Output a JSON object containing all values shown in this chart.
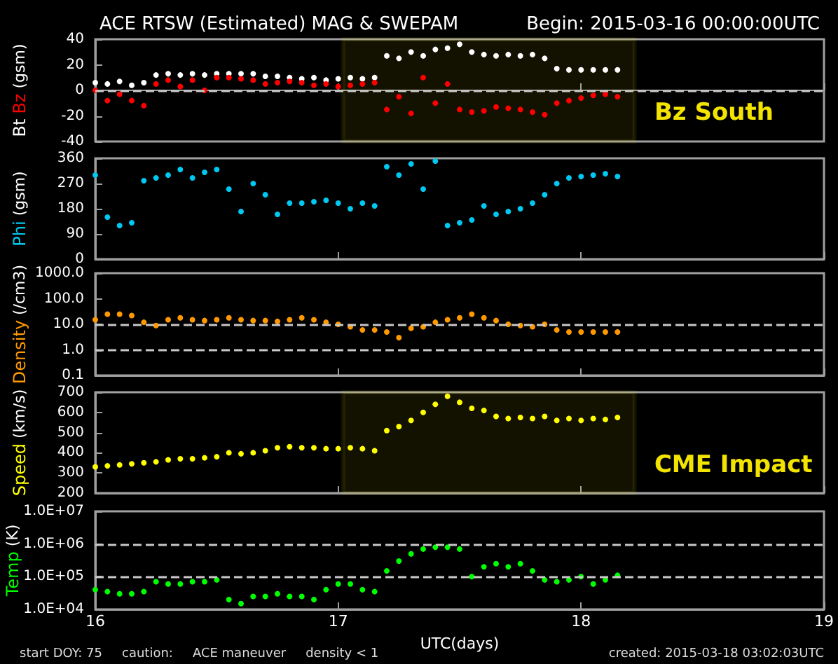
{
  "chart_data": [
    {
      "type": "scatter",
      "title": "ACE RTSW (Estimated) MAG & SWEPAM",
      "subtitle": "Begin: 2015-03-16 00:00:00UTC",
      "ylabel": "(gsm)",
      "marker": "circle",
      "tick_labels": "y",
      "x": [
        16.0,
        16.05,
        16.1,
        16.15,
        16.2,
        16.25,
        16.3,
        16.35,
        16.4,
        16.45,
        16.5,
        16.55,
        16.6,
        16.65,
        16.7,
        16.75,
        16.8,
        16.85,
        16.9,
        16.95,
        17.0,
        17.05,
        17.1,
        17.15,
        17.2,
        17.25,
        17.3,
        17.35,
        17.4,
        17.45,
        17.5,
        17.55,
        17.6,
        17.65,
        17.7,
        17.75,
        17.8,
        17.85,
        17.9,
        17.95,
        18.0,
        18.05,
        18.1,
        18.15
      ],
      "series": [
        {
          "name": "Bt",
          "color": "#ffffff",
          "values": [
            6,
            5,
            7,
            4,
            6,
            12,
            13,
            12,
            13,
            12,
            13,
            13,
            13,
            13,
            11,
            11,
            10,
            9,
            10,
            8,
            9,
            10,
            9,
            10,
            27,
            25,
            30,
            27,
            32,
            33,
            36,
            30,
            28,
            27,
            28,
            27,
            28,
            25,
            17,
            16,
            16,
            16,
            16,
            16
          ]
        },
        {
          "name": "Bz",
          "color": "#ff0000",
          "values": [
            0,
            -8,
            -3,
            -8,
            -12,
            5,
            8,
            3,
            8,
            0,
            10,
            10,
            9,
            8,
            5,
            6,
            7,
            6,
            4,
            5,
            3,
            4,
            5,
            6,
            -15,
            -5,
            -18,
            10,
            -10,
            5,
            -15,
            -17,
            -16,
            -13,
            -14,
            -15,
            -17,
            -19,
            -10,
            -8,
            -6,
            -4,
            -3,
            -5
          ]
        }
      ],
      "xlim": [
        16,
        19
      ],
      "xticks": [
        16,
        17,
        18,
        19
      ],
      "ylim": [
        -40,
        40
      ],
      "yticks": [
        -40,
        -20,
        0,
        20,
        40
      ],
      "ref_lines": [
        {
          "axis": "y",
          "value": 0,
          "color": "#c8c8c8",
          "line_style": "dashed"
        }
      ],
      "bands": [
        {
          "axis": "x",
          "from": 17.02,
          "to": 18.22,
          "label": "Bz South",
          "color": "#f2e400"
        }
      ]
    },
    {
      "type": "scatter",
      "ylabel": "(gsm)",
      "marker": "circle",
      "tick_labels": "y",
      "x": [
        16.0,
        16.05,
        16.1,
        16.15,
        16.2,
        16.25,
        16.3,
        16.35,
        16.4,
        16.45,
        16.5,
        16.55,
        16.6,
        16.65,
        16.7,
        16.75,
        16.8,
        16.85,
        16.9,
        16.95,
        17.0,
        17.05,
        17.1,
        17.15,
        17.2,
        17.25,
        17.3,
        17.35,
        17.4,
        17.45,
        17.5,
        17.55,
        17.6,
        17.65,
        17.7,
        17.75,
        17.8,
        17.85,
        17.9,
        17.95,
        18.0,
        18.05,
        18.1,
        18.15
      ],
      "series": [
        {
          "name": "Phi",
          "color": "#00c8f0",
          "values": [
            300,
            150,
            120,
            130,
            280,
            290,
            300,
            320,
            290,
            310,
            320,
            250,
            170,
            270,
            230,
            160,
            200,
            200,
            205,
            210,
            200,
            180,
            200,
            190,
            330,
            300,
            340,
            250,
            350,
            120,
            130,
            140,
            190,
            160,
            170,
            180,
            200,
            230,
            270,
            290,
            295,
            300,
            305,
            295
          ]
        }
      ],
      "xlim": [
        16,
        19
      ],
      "xticks": [
        16,
        17,
        18,
        19
      ],
      "ylim": [
        0,
        360
      ],
      "yticks": [
        0,
        90,
        180,
        270,
        360
      ]
    },
    {
      "type": "scatter",
      "ylabel": "(/cm3)",
      "marker": "circle",
      "tick_labels": "y",
      "log": "y",
      "x": [
        16.0,
        16.05,
        16.1,
        16.15,
        16.2,
        16.25,
        16.3,
        16.35,
        16.4,
        16.45,
        16.5,
        16.55,
        16.6,
        16.65,
        16.7,
        16.75,
        16.8,
        16.85,
        16.9,
        16.95,
        17.0,
        17.05,
        17.1,
        17.15,
        17.2,
        17.25,
        17.3,
        17.35,
        17.4,
        17.45,
        17.5,
        17.55,
        17.6,
        17.65,
        17.7,
        17.75,
        17.8,
        17.85,
        17.9,
        17.95,
        18.0,
        18.05,
        18.1,
        18.15
      ],
      "series": [
        {
          "name": "Density",
          "color": "#ff9900",
          "values": [
            15,
            25,
            25,
            22,
            12,
            9,
            15,
            18,
            15,
            14,
            15,
            18,
            15,
            14,
            14,
            13,
            15,
            18,
            15,
            12,
            10,
            8,
            6,
            6,
            5,
            3,
            7,
            8,
            12,
            15,
            18,
            25,
            18,
            14,
            10,
            9,
            8,
            10,
            6,
            5,
            5,
            5,
            5,
            5
          ]
        }
      ],
      "xlim": [
        16,
        19
      ],
      "xticks": [
        16,
        17,
        18,
        19
      ],
      "ylim": [
        0.1,
        1000
      ],
      "yticks": [
        0.1,
        {
          "value": 1,
          "label": "1.0"
        },
        {
          "value": 10,
          "label": "10.0"
        },
        {
          "value": 100,
          "label": "100.0"
        },
        {
          "value": 1000,
          "label": "1000.0"
        }
      ],
      "ref_lines": [
        {
          "axis": "y",
          "value": 10,
          "color": "#c8c8c8",
          "line_style": "dashed"
        },
        {
          "axis": "y",
          "value": 1,
          "color": "#c8c8c8",
          "line_style": "dashed"
        }
      ]
    },
    {
      "type": "scatter",
      "ylabel": "(km/s)",
      "marker": "circle",
      "tick_labels": "y",
      "x": [
        16.0,
        16.05,
        16.1,
        16.15,
        16.2,
        16.25,
        16.3,
        16.35,
        16.4,
        16.45,
        16.5,
        16.55,
        16.6,
        16.65,
        16.7,
        16.75,
        16.8,
        16.85,
        16.9,
        16.95,
        17.0,
        17.05,
        17.1,
        17.15,
        17.2,
        17.25,
        17.3,
        17.35,
        17.4,
        17.45,
        17.5,
        17.55,
        17.6,
        17.65,
        17.7,
        17.75,
        17.8,
        17.85,
        17.9,
        17.95,
        18.0,
        18.05,
        18.1,
        18.15
      ],
      "series": [
        {
          "name": "Speed",
          "color": "#ffff00",
          "values": [
            330,
            335,
            340,
            345,
            350,
            355,
            365,
            370,
            370,
            375,
            380,
            400,
            395,
            400,
            410,
            425,
            430,
            425,
            425,
            420,
            420,
            425,
            420,
            410,
            510,
            530,
            560,
            600,
            640,
            680,
            650,
            620,
            610,
            580,
            570,
            575,
            570,
            580,
            560,
            570,
            560,
            570,
            565,
            575
          ]
        }
      ],
      "xlim": [
        16,
        19
      ],
      "xticks": [
        16,
        17,
        18,
        19
      ],
      "ylim": [
        200,
        700
      ],
      "yticks": [
        200,
        300,
        400,
        500,
        600,
        700
      ],
      "bands": [
        {
          "axis": "x",
          "from": 17.02,
          "to": 18.22,
          "label": "CME Impact",
          "color": "#f2e400"
        }
      ]
    },
    {
      "type": "scatter",
      "ylabel": "(K)",
      "xlabel": "UTC(days)",
      "marker": "circle",
      "log": "y",
      "x": [
        16.0,
        16.05,
        16.1,
        16.15,
        16.2,
        16.25,
        16.3,
        16.35,
        16.4,
        16.45,
        16.5,
        16.55,
        16.6,
        16.65,
        16.7,
        16.75,
        16.8,
        16.85,
        16.9,
        16.95,
        17.0,
        17.05,
        17.1,
        17.15,
        17.2,
        17.25,
        17.3,
        17.35,
        17.4,
        17.45,
        17.5,
        17.55,
        17.6,
        17.65,
        17.7,
        17.75,
        17.8,
        17.85,
        17.9,
        17.95,
        18.0,
        18.05,
        18.1,
        18.15
      ],
      "series": [
        {
          "name": "Temp",
          "color": "#00ff00",
          "values": [
            40000,
            35000,
            30000,
            30000,
            35000,
            70000,
            60000,
            60000,
            70000,
            70000,
            80000,
            20000,
            15000,
            25000,
            25000,
            30000,
            25000,
            25000,
            20000,
            40000,
            60000,
            60000,
            40000,
            35000,
            150000,
            300000,
            500000,
            700000,
            800000,
            800000,
            700000,
            100000,
            200000,
            250000,
            200000,
            250000,
            150000,
            80000,
            70000,
            80000,
            100000,
            60000,
            80000,
            110000
          ]
        }
      ],
      "xlim": [
        16,
        19
      ],
      "xticks": [
        16,
        17,
        18,
        19
      ],
      "ylim": [
        10000,
        10000000
      ],
      "yticks": [
        {
          "value": 10000,
          "label": "1.0E+04"
        },
        {
          "value": 100000,
          "label": "1.0E+05"
        },
        {
          "value": 1000000,
          "label": "1.0E+06"
        },
        {
          "value": 10000000,
          "label": "1.0E+07"
        }
      ],
      "ref_lines": [
        {
          "axis": "y",
          "value": 1000000,
          "color": "#c8c8c8",
          "line_style": "dashed"
        },
        {
          "axis": "y",
          "value": 100000,
          "color": "#c8c8c8",
          "line_style": "dashed"
        }
      ],
      "annotations": [
        "start DOY: 75",
        "caution:",
        "ACE maneuver",
        "density < 1",
        "created: 2015-03-18 03:02:03UTC"
      ]
    }
  ]
}
